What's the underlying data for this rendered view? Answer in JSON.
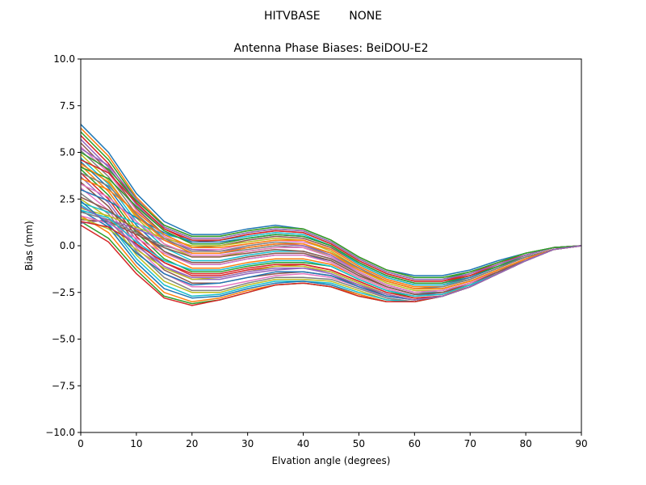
{
  "suptitle": "HITVBASE        NONE",
  "chart_data": {
    "type": "line",
    "title": "Antenna Phase Biases: BeiDOU-E2",
    "xlabel": "Elvation angle (degrees)",
    "ylabel": "Bias (mm)",
    "xlim": [
      0,
      90
    ],
    "ylim": [
      -10,
      10
    ],
    "x_ticks": [
      "0",
      "10",
      "20",
      "30",
      "40",
      "50",
      "60",
      "70",
      "80",
      "90"
    ],
    "y_ticks": [
      "10.0",
      "7.5",
      "5.0",
      "2.5",
      "0.0",
      "−2.5",
      "−5.0",
      "−7.5",
      "−10.0"
    ],
    "grid": false,
    "legend": "none",
    "x": [
      0,
      5,
      10,
      15,
      20,
      25,
      30,
      35,
      40,
      45,
      50,
      55,
      60,
      65,
      70,
      75,
      80,
      85,
      90
    ],
    "colors": [
      "#1f77b4",
      "#ff7f0e",
      "#2ca02c",
      "#d62728",
      "#9467bd",
      "#8c564b",
      "#e377c2",
      "#7f7f7f",
      "#bcbd22",
      "#17becf"
    ],
    "series": [
      {
        "values": [
          6.5,
          5.0,
          2.8,
          1.3,
          0.6,
          0.6,
          0.9,
          1.1,
          0.9,
          0.3,
          -0.6,
          -1.3,
          -1.6,
          -1.6,
          -1.3,
          -0.8,
          -0.4,
          -0.1,
          0.0
        ]
      },
      {
        "values": [
          6.3,
          4.8,
          2.6,
          1.1,
          0.5,
          0.5,
          0.8,
          1.0,
          0.9,
          0.3,
          -0.6,
          -1.3,
          -1.7,
          -1.7,
          -1.4,
          -0.9,
          -0.4,
          -0.1,
          0.0
        ]
      },
      {
        "values": [
          6.1,
          4.6,
          2.5,
          1.0,
          0.4,
          0.4,
          0.7,
          0.9,
          0.8,
          0.2,
          -0.7,
          -1.4,
          -1.8,
          -1.8,
          -1.4,
          -0.9,
          -0.4,
          -0.1,
          0.0
        ]
      },
      {
        "values": [
          5.9,
          4.4,
          2.3,
          0.9,
          0.2,
          0.3,
          0.6,
          0.8,
          0.7,
          0.1,
          -0.8,
          -1.5,
          -1.9,
          -1.9,
          -1.5,
          -0.9,
          -0.5,
          -0.1,
          0.0
        ]
      },
      {
        "values": [
          5.7,
          4.2,
          2.2,
          0.8,
          0.1,
          0.1,
          0.4,
          0.6,
          0.5,
          0.0,
          -0.9,
          -1.6,
          -2.0,
          -2.0,
          -1.6,
          -1.0,
          -0.5,
          -0.1,
          0.0
        ]
      },
      {
        "values": [
          5.5,
          4.0,
          2.0,
          0.6,
          -0.1,
          0.0,
          0.3,
          0.5,
          0.4,
          -0.1,
          -1.0,
          -1.7,
          -2.1,
          -2.1,
          -1.7,
          -1.1,
          -0.6,
          -0.2,
          0.0
        ]
      },
      {
        "values": [
          5.3,
          3.9,
          1.9,
          0.5,
          -0.2,
          -0.2,
          0.1,
          0.3,
          0.2,
          -0.2,
          -1.1,
          -1.8,
          -2.2,
          -2.2,
          -1.8,
          -1.2,
          -0.6,
          -0.2,
          0.0
        ]
      },
      {
        "values": [
          5.1,
          3.7,
          1.7,
          0.3,
          -0.4,
          -0.4,
          -0.1,
          0.1,
          0.0,
          -0.4,
          -1.2,
          -1.9,
          -2.3,
          -2.3,
          -1.9,
          -1.3,
          -0.7,
          -0.2,
          0.0
        ]
      },
      {
        "values": [
          4.9,
          3.5,
          1.5,
          0.1,
          -0.6,
          -0.6,
          -0.3,
          -0.1,
          -0.1,
          -0.5,
          -1.3,
          -2.0,
          -2.4,
          -2.4,
          -2.0,
          -1.4,
          -0.7,
          -0.2,
          0.0
        ]
      },
      {
        "values": [
          4.7,
          3.3,
          1.3,
          -0.1,
          -0.8,
          -0.8,
          -0.5,
          -0.3,
          -0.3,
          -0.7,
          -1.4,
          -2.1,
          -2.5,
          -2.5,
          -2.1,
          -1.4,
          -0.8,
          -0.2,
          0.0
        ]
      },
      {
        "values": [
          4.5,
          3.1,
          1.1,
          -0.3,
          -1.0,
          -1.0,
          -0.7,
          -0.5,
          -0.5,
          -0.8,
          -1.6,
          -2.2,
          -2.6,
          -2.6,
          -2.1,
          -1.5,
          -0.8,
          -0.2,
          0.0
        ]
      },
      {
        "values": [
          4.3,
          2.9,
          0.9,
          -0.5,
          -1.2,
          -1.2,
          -0.9,
          -0.7,
          -0.7,
          -1.0,
          -1.7,
          -2.3,
          -2.7,
          -2.6,
          -2.2,
          -1.5,
          -0.8,
          -0.2,
          0.0
        ]
      },
      {
        "values": [
          4.1,
          2.7,
          0.7,
          -0.7,
          -1.4,
          -1.4,
          -1.1,
          -0.9,
          -0.9,
          -1.1,
          -1.8,
          -2.4,
          -2.8,
          -2.7,
          -2.2,
          -1.5,
          -0.8,
          -0.2,
          0.0
        ]
      },
      {
        "values": [
          3.9,
          2.5,
          0.5,
          -0.9,
          -1.6,
          -1.6,
          -1.3,
          -1.1,
          -1.0,
          -1.3,
          -1.9,
          -2.5,
          -2.8,
          -2.7,
          -2.2,
          -1.5,
          -0.8,
          -0.2,
          0.0
        ]
      },
      {
        "values": [
          3.7,
          2.3,
          0.3,
          -1.1,
          -1.8,
          -1.8,
          -1.5,
          -1.3,
          -1.2,
          -1.4,
          -2.0,
          -2.6,
          -2.9,
          -2.7,
          -2.2,
          -1.5,
          -0.8,
          -0.2,
          0.0
        ]
      },
      {
        "values": [
          3.4,
          2.1,
          0.1,
          -1.3,
          -2.0,
          -2.0,
          -1.7,
          -1.5,
          -1.4,
          -1.6,
          -2.1,
          -2.7,
          -2.9,
          -2.7,
          -2.2,
          -1.5,
          -0.8,
          -0.2,
          0.0
        ]
      },
      {
        "values": [
          3.1,
          1.9,
          -0.1,
          -1.5,
          -2.2,
          -2.2,
          -1.9,
          -1.6,
          -1.5,
          -1.7,
          -2.2,
          -2.8,
          -3.0,
          -2.7,
          -2.2,
          -1.5,
          -0.8,
          -0.2,
          0.0
        ]
      },
      {
        "values": [
          2.8,
          1.7,
          -0.3,
          -1.7,
          -2.4,
          -2.4,
          -2.0,
          -1.7,
          -1.7,
          -1.8,
          -2.3,
          -2.8,
          -3.0,
          -2.7,
          -2.2,
          -1.5,
          -0.8,
          -0.2,
          0.0
        ]
      },
      {
        "values": [
          2.5,
          1.5,
          -0.5,
          -1.9,
          -2.5,
          -2.5,
          -2.1,
          -1.8,
          -1.8,
          -1.9,
          -2.4,
          -2.9,
          -3.0,
          -2.7,
          -2.2,
          -1.5,
          -0.8,
          -0.2,
          0.0
        ]
      },
      {
        "values": [
          2.2,
          1.2,
          -0.7,
          -2.1,
          -2.7,
          -2.6,
          -2.2,
          -1.9,
          -1.9,
          -2.0,
          -2.5,
          -2.9,
          -3.0,
          -2.7,
          -2.2,
          -1.5,
          -0.8,
          -0.2,
          0.0
        ]
      },
      {
        "values": [
          1.9,
          1.0,
          -0.9,
          -2.3,
          -2.8,
          -2.7,
          -2.3,
          -2.0,
          -1.9,
          -2.1,
          -2.6,
          -3.0,
          -3.0,
          -2.7,
          -2.2,
          -1.5,
          -0.8,
          -0.2,
          0.0
        ]
      },
      {
        "values": [
          1.6,
          0.7,
          -1.1,
          -2.5,
          -3.0,
          -2.8,
          -2.4,
          -2.1,
          -2.0,
          -2.2,
          -2.6,
          -3.0,
          -3.0,
          -2.7,
          -2.2,
          -1.5,
          -0.8,
          -0.2,
          0.0
        ]
      },
      {
        "values": [
          1.3,
          0.4,
          -1.3,
          -2.7,
          -3.1,
          -2.9,
          -2.5,
          -2.1,
          -2.0,
          -2.2,
          -2.7,
          -3.0,
          -3.0,
          -2.7,
          -2.2,
          -1.5,
          -0.8,
          -0.2,
          0.0
        ]
      },
      {
        "values": [
          1.1,
          0.2,
          -1.5,
          -2.8,
          -3.2,
          -2.9,
          -2.5,
          -2.1,
          -2.0,
          -2.2,
          -2.7,
          -3.0,
          -3.0,
          -2.7,
          -2.2,
          -1.5,
          -0.8,
          -0.2,
          0.0
        ]
      },
      {
        "values": [
          1.2,
          1.4,
          0.9,
          0.3,
          -0.2,
          -0.3,
          -0.1,
          0.1,
          0.0,
          -0.5,
          -1.4,
          -2.1,
          -2.5,
          -2.4,
          -2.0,
          -1.4,
          -0.7,
          -0.2,
          0.0
        ]
      },
      {
        "values": [
          1.4,
          1.3,
          0.6,
          -0.1,
          -0.6,
          -0.6,
          -0.4,
          -0.2,
          -0.3,
          -0.7,
          -1.5,
          -2.2,
          -2.6,
          -2.5,
          -2.1,
          -1.4,
          -0.8,
          -0.2,
          0.0
        ]
      },
      {
        "values": [
          1.6,
          1.2,
          0.4,
          -0.4,
          -1.0,
          -1.0,
          -0.7,
          -0.5,
          -0.5,
          -0.9,
          -1.7,
          -2.3,
          -2.7,
          -2.6,
          -2.1,
          -1.5,
          -0.8,
          -0.2,
          0.0
        ]
      },
      {
        "values": [
          1.8,
          1.4,
          0.7,
          0.0,
          -0.4,
          -0.4,
          -0.2,
          0.0,
          -0.1,
          -0.6,
          -1.4,
          -2.1,
          -2.5,
          -2.4,
          -2.0,
          -1.4,
          -0.7,
          -0.2,
          0.0
        ]
      },
      {
        "values": [
          2.0,
          1.6,
          1.0,
          0.4,
          0.0,
          0.0,
          0.2,
          0.4,
          0.3,
          -0.3,
          -1.2,
          -1.9,
          -2.3,
          -2.3,
          -1.9,
          -1.3,
          -0.7,
          -0.2,
          0.0
        ]
      },
      {
        "values": [
          2.3,
          1.8,
          1.2,
          0.6,
          0.3,
          0.3,
          0.5,
          0.7,
          0.6,
          0.0,
          -1.0,
          -1.7,
          -2.1,
          -2.1,
          -1.8,
          -1.2,
          -0.6,
          -0.2,
          0.0
        ]
      },
      {
        "values": [
          3.0,
          2.4,
          1.5,
          0.7,
          0.2,
          0.2,
          0.4,
          0.6,
          0.5,
          0.0,
          -0.9,
          -1.6,
          -2.0,
          -2.0,
          -1.7,
          -1.1,
          -0.6,
          -0.2,
          0.0
        ]
      },
      {
        "values": [
          3.6,
          3.0,
          1.8,
          0.6,
          -0.1,
          -0.1,
          0.1,
          0.3,
          0.3,
          -0.2,
          -1.1,
          -1.8,
          -2.2,
          -2.2,
          -1.8,
          -1.2,
          -0.6,
          -0.2,
          0.0
        ]
      },
      {
        "values": [
          4.2,
          3.6,
          2.1,
          0.8,
          0.1,
          0.1,
          0.4,
          0.6,
          0.5,
          0.0,
          -0.9,
          -1.6,
          -2.0,
          -2.0,
          -1.6,
          -1.1,
          -0.5,
          -0.1,
          0.0
        ]
      },
      {
        "values": [
          4.6,
          3.9,
          2.3,
          0.9,
          0.3,
          0.3,
          0.6,
          0.8,
          0.7,
          0.1,
          -0.8,
          -1.5,
          -1.9,
          -1.9,
          -1.6,
          -1.0,
          -0.5,
          -0.1,
          0.0
        ]
      },
      {
        "values": [
          5.2,
          4.3,
          2.5,
          1.0,
          0.4,
          0.4,
          0.7,
          0.9,
          0.8,
          0.2,
          -0.7,
          -1.4,
          -1.8,
          -1.8,
          -1.5,
          -1.0,
          -0.5,
          -0.1,
          0.0
        ]
      },
      {
        "values": [
          2.6,
          1.9,
          0.8,
          -0.3,
          -0.9,
          -0.9,
          -0.6,
          -0.4,
          -0.4,
          -0.8,
          -1.6,
          -2.2,
          -2.6,
          -2.5,
          -2.0,
          -1.4,
          -0.8,
          -0.2,
          0.0
        ]
      },
      {
        "values": [
          3.3,
          2.6,
          1.3,
          0.1,
          -0.5,
          -0.5,
          -0.3,
          -0.1,
          -0.1,
          -0.6,
          -1.4,
          -2.1,
          -2.5,
          -2.4,
          -2.0,
          -1.3,
          -0.7,
          -0.2,
          0.0
        ]
      },
      {
        "values": [
          3.9,
          3.2,
          1.7,
          0.4,
          -0.3,
          -0.3,
          0.0,
          0.2,
          0.1,
          -0.4,
          -1.2,
          -1.9,
          -2.3,
          -2.2,
          -1.8,
          -1.2,
          -0.6,
          -0.2,
          0.0
        ]
      },
      {
        "values": [
          1.5,
          0.9,
          -0.2,
          -1.2,
          -1.8,
          -1.7,
          -1.4,
          -1.1,
          -1.1,
          -1.4,
          -2.0,
          -2.6,
          -2.9,
          -2.7,
          -2.2,
          -1.5,
          -0.8,
          -0.2,
          0.0
        ]
      },
      {
        "values": [
          1.9,
          1.5,
          0.2,
          -0.8,
          -1.3,
          -1.3,
          -1.0,
          -0.8,
          -0.8,
          -1.1,
          -1.8,
          -2.4,
          -2.7,
          -2.6,
          -2.1,
          -1.5,
          -0.8,
          -0.2,
          0.0
        ]
      },
      {
        "values": [
          2.4,
          1.1,
          -0.4,
          -1.5,
          -2.1,
          -2.0,
          -1.7,
          -1.4,
          -1.4,
          -1.6,
          -2.2,
          -2.7,
          -2.9,
          -2.7,
          -2.2,
          -1.5,
          -0.8,
          -0.2,
          0.0
        ]
      },
      {
        "values": [
          4.4,
          3.4,
          1.6,
          0.3,
          -0.4,
          -0.4,
          -0.1,
          0.1,
          0.1,
          -0.4,
          -1.3,
          -1.9,
          -2.3,
          -2.3,
          -1.9,
          -1.3,
          -0.7,
          -0.2,
          0.0
        ]
      },
      {
        "values": [
          5.0,
          4.1,
          2.4,
          1.1,
          0.5,
          0.5,
          0.8,
          1.0,
          0.9,
          0.3,
          -0.6,
          -1.3,
          -1.7,
          -1.7,
          -1.4,
          -0.9,
          -0.4,
          -0.1,
          0.0
        ]
      },
      {
        "values": [
          1.3,
          1.0,
          0.1,
          -0.9,
          -1.5,
          -1.5,
          -1.2,
          -1.0,
          -1.0,
          -1.3,
          -1.9,
          -2.5,
          -2.8,
          -2.7,
          -2.2,
          -1.5,
          -0.8,
          -0.2,
          0.0
        ]
      },
      {
        "values": [
          2.1,
          1.3,
          0.0,
          -1.1,
          -1.7,
          -1.7,
          -1.4,
          -1.2,
          -1.2,
          -1.5,
          -2.1,
          -2.6,
          -2.9,
          -2.7,
          -2.2,
          -1.5,
          -0.8,
          -0.2,
          0.0
        ]
      }
    ]
  }
}
